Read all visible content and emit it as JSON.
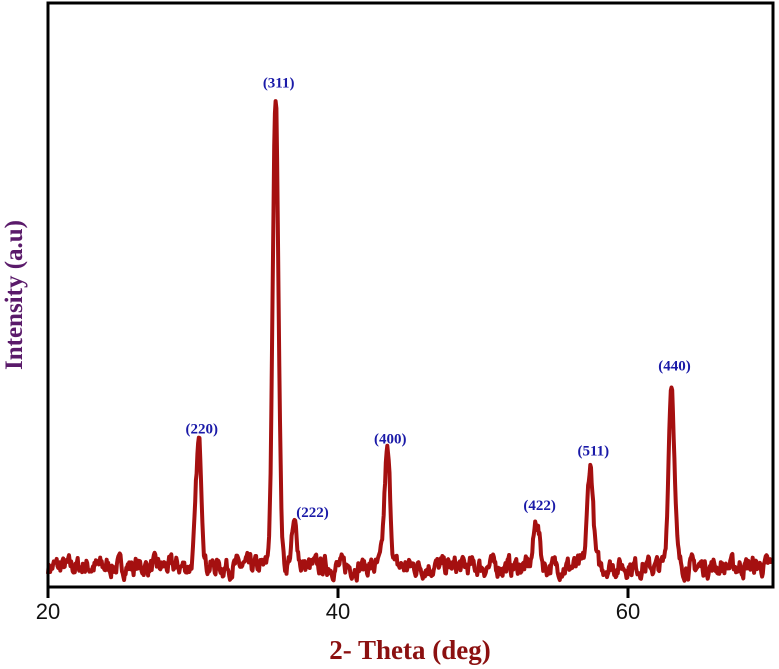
{
  "chart_data": {
    "type": "line",
    "title": "",
    "xlabel": "2- Theta (deg)",
    "ylabel": "Intensity (a.u)",
    "xlim": [
      20,
      70
    ],
    "ylim": [
      0,
      100
    ],
    "xticks": [
      20,
      40,
      60
    ],
    "yticks": [],
    "grid": false,
    "line_color": "#a51010",
    "label_color": "#1a1aa8",
    "baseline": 3.5,
    "peaks": [
      {
        "label": "(220)",
        "x": 30.4,
        "y": 24.6
      },
      {
        "label": "(311)",
        "x": 35.7,
        "y": 83.8
      },
      {
        "label": "(222)",
        "x": 37.0,
        "y": 10.3
      },
      {
        "label": "(400)",
        "x": 43.4,
        "y": 22.9
      },
      {
        "label": "(422)",
        "x": 53.7,
        "y": 11.5
      },
      {
        "label": "(511)",
        "x": 57.4,
        "y": 20.8
      },
      {
        "label": "(440)",
        "x": 63.0,
        "y": 35.4
      }
    ]
  }
}
